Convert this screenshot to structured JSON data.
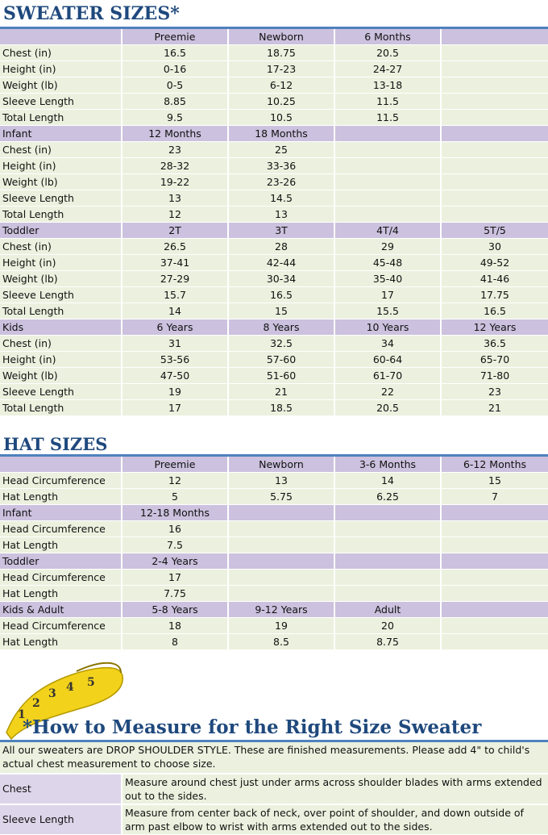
{
  "sweater": {
    "title": "SWEATER SIZES*",
    "sections": [
      {
        "columns": [
          "Preemie",
          "Newborn",
          "6 Months"
        ],
        "rows": [
          [
            "Chest (in)",
            "16.5",
            "18.75",
            "20.5"
          ],
          [
            "Height (in)",
            "0-16",
            "17-23",
            "24-27"
          ],
          [
            "Weight (lb)",
            "0-5",
            "6-12",
            "13-18"
          ],
          [
            "Sleeve Length",
            "8.85",
            "10.25",
            "11.5"
          ],
          [
            "Total Length",
            "9.5",
            "10.5",
            "11.5"
          ]
        ]
      },
      {
        "name": "Infant",
        "columns": [
          "12 Months",
          "18 Months"
        ],
        "rows": [
          [
            "Chest (in)",
            "23",
            "25"
          ],
          [
            "Height (in)",
            "28-32",
            "33-36"
          ],
          [
            "Weight (lb)",
            "19-22",
            "23-26"
          ],
          [
            "Sleeve Length",
            "13",
            "14.5"
          ],
          [
            "Total Length",
            "12",
            "13"
          ]
        ]
      },
      {
        "name": "Toddler",
        "columns": [
          "2T",
          "3T",
          "4T/4",
          "5T/5"
        ],
        "rows": [
          [
            "Chest (in)",
            "26.5",
            "28",
            "29",
            "30"
          ],
          [
            "Height (in)",
            "37-41",
            "42-44",
            "45-48",
            "49-52"
          ],
          [
            "Weight (lb)",
            "27-29",
            "30-34",
            "35-40",
            "41-46"
          ],
          [
            "Sleeve Length",
            "15.7",
            "16.5",
            "17",
            "17.75"
          ],
          [
            "Total Length",
            "14",
            "15",
            "15.5",
            "16.5"
          ]
        ]
      },
      {
        "name": "Kids",
        "columns": [
          "6 Years",
          "8 Years",
          "10 Years",
          "12 Years"
        ],
        "rows": [
          [
            "Chest (in)",
            "31",
            "32.5",
            "34",
            "36.5"
          ],
          [
            "Height (in)",
            "53-56",
            "57-60",
            "60-64",
            "65-70"
          ],
          [
            "Weight (lb)",
            "47-50",
            "51-60",
            "61-70",
            "71-80"
          ],
          [
            "Sleeve Length",
            "19",
            "21",
            "22",
            "23"
          ],
          [
            "Total Length",
            "17",
            "18.5",
            "20.5",
            "21"
          ]
        ]
      }
    ]
  },
  "hat": {
    "title": "HAT SIZES",
    "sections": [
      {
        "columns": [
          "Preemie",
          "Newborn",
          "3-6 Months",
          "6-12 Months"
        ],
        "rows": [
          [
            "Head Circumference",
            "12",
            "13",
            "14",
            "15"
          ],
          [
            "Hat Length",
            "5",
            "5.75",
            "6.25",
            "7"
          ]
        ]
      },
      {
        "name": "Infant",
        "columns": [
          "12-18 Months"
        ],
        "rows": [
          [
            "Head Circumference",
            "16"
          ],
          [
            "Hat Length",
            "7.5"
          ]
        ]
      },
      {
        "name": "Toddler",
        "columns": [
          "2-4 Years"
        ],
        "rows": [
          [
            "Head Circumference",
            "17"
          ],
          [
            "Hat Length",
            "7.75"
          ]
        ]
      },
      {
        "name": "Kids & Adult",
        "columns": [
          "5-8 Years",
          "9-12 Years",
          "Adult"
        ],
        "rows": [
          [
            "Head Circumference",
            "18",
            "19",
            "20"
          ],
          [
            "Hat Length",
            "8",
            "8.5",
            "8.75"
          ]
        ]
      }
    ]
  },
  "measure": {
    "tape_marks": [
      "1",
      "2",
      "3",
      "4",
      "5"
    ],
    "title": "*How to Measure for the Right Size Sweater",
    "intro": "All our sweaters are DROP SHOULDER STYLE.  These are finished measurements.  Please add 4\" to child's actual chest measurement to choose size.",
    "items": [
      {
        "term": "Chest",
        "text": "Measure around chest just under arms across shoulder blades with arms extended out to the sides."
      },
      {
        "term": "Sleeve Length",
        "text": "Measure from center back of neck, over point of shoulder, and down outside of arm past elbow to wrist with arms extended out to the sides."
      }
    ]
  }
}
